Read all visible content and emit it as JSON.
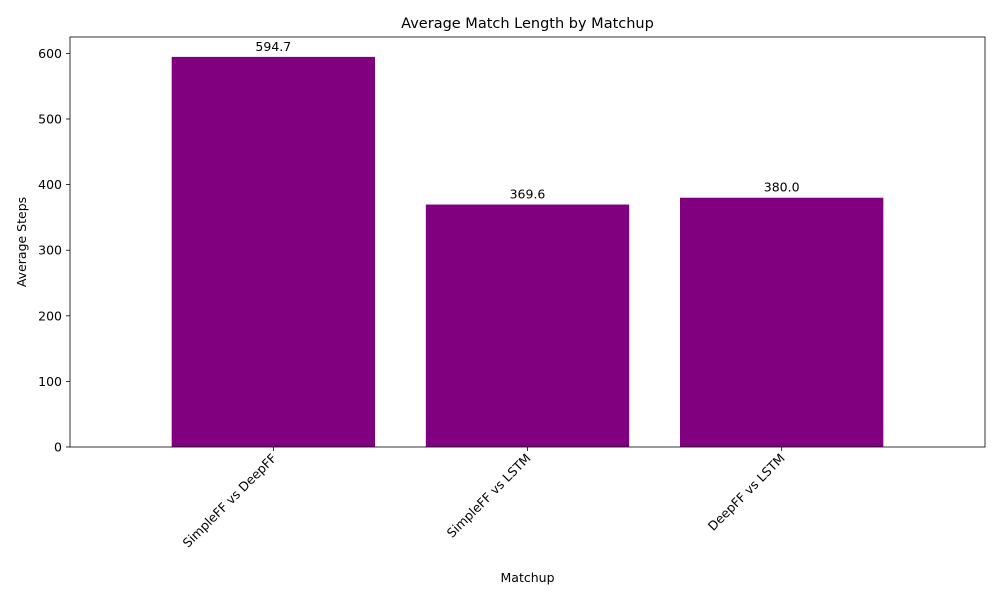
{
  "chart_data": {
    "type": "bar",
    "title": "Average Match Length by Matchup",
    "xlabel": "Matchup",
    "ylabel": "Average Steps",
    "categories": [
      "SimpleFF vs DeepFF",
      "SimpleFF vs LSTM",
      "DeepFF vs LSTM"
    ],
    "values": [
      594.7,
      369.6,
      380.0
    ],
    "value_labels": [
      "594.7",
      "369.6",
      "380.0"
    ],
    "ylim": [
      0,
      625
    ],
    "yticks": [
      0,
      100,
      200,
      300,
      400,
      500,
      600
    ],
    "bar_color": "#800080",
    "grid": false,
    "legend": "none",
    "x_tick_rotation_deg": 45
  }
}
